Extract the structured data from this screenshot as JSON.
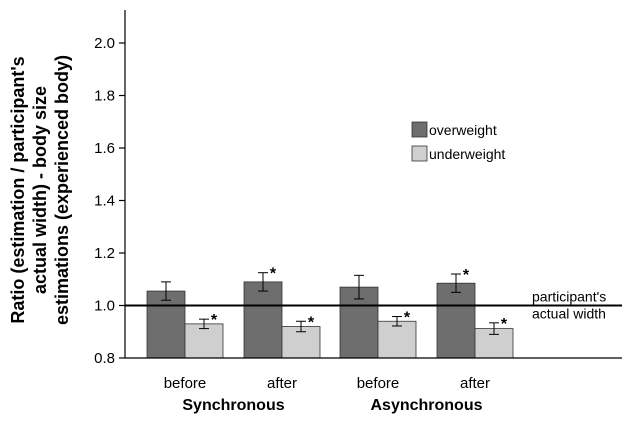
{
  "chart_data": {
    "type": "bar",
    "ylabel": "Ratio (estimation / participant's actual width) - body size estimations (experienced body)",
    "ylabel_lines": [
      "Ratio (estimation / participant's",
      "actual width) - body size",
      "estimations (experienced body)"
    ],
    "ylim": [
      0.8,
      2.1
    ],
    "yticks": [
      0.8,
      1.0,
      1.2,
      1.4,
      1.6,
      1.8,
      2.0
    ],
    "ytick_labels": [
      "0.8",
      "1.0",
      "1.2",
      "1.4",
      "1.6",
      "1.8",
      "2.0"
    ],
    "categories": [
      "before",
      "after",
      "before",
      "after"
    ],
    "groups": [
      {
        "label": "Synchronous",
        "categories": [
          0,
          1
        ]
      },
      {
        "label": "Asynchronous",
        "categories": [
          2,
          3
        ]
      }
    ],
    "series": [
      {
        "name": "overweight",
        "color": "#6e6e6e",
        "values": [
          1.055,
          1.09,
          1.07,
          1.085
        ],
        "errors": [
          0.035,
          0.035,
          0.045,
          0.035
        ],
        "significant": [
          false,
          true,
          false,
          true
        ]
      },
      {
        "name": "underweight",
        "color": "#cfcfcf",
        "values": [
          0.93,
          0.92,
          0.94,
          0.912
        ],
        "errors": [
          0.018,
          0.02,
          0.018,
          0.022
        ],
        "significant": [
          true,
          true,
          true,
          true
        ]
      }
    ],
    "significance_marker": "*",
    "reference_line": {
      "value": 1.0,
      "label_lines": [
        "participant's",
        "actual width"
      ]
    },
    "legend": {
      "position": "top-right"
    },
    "grid": false
  }
}
